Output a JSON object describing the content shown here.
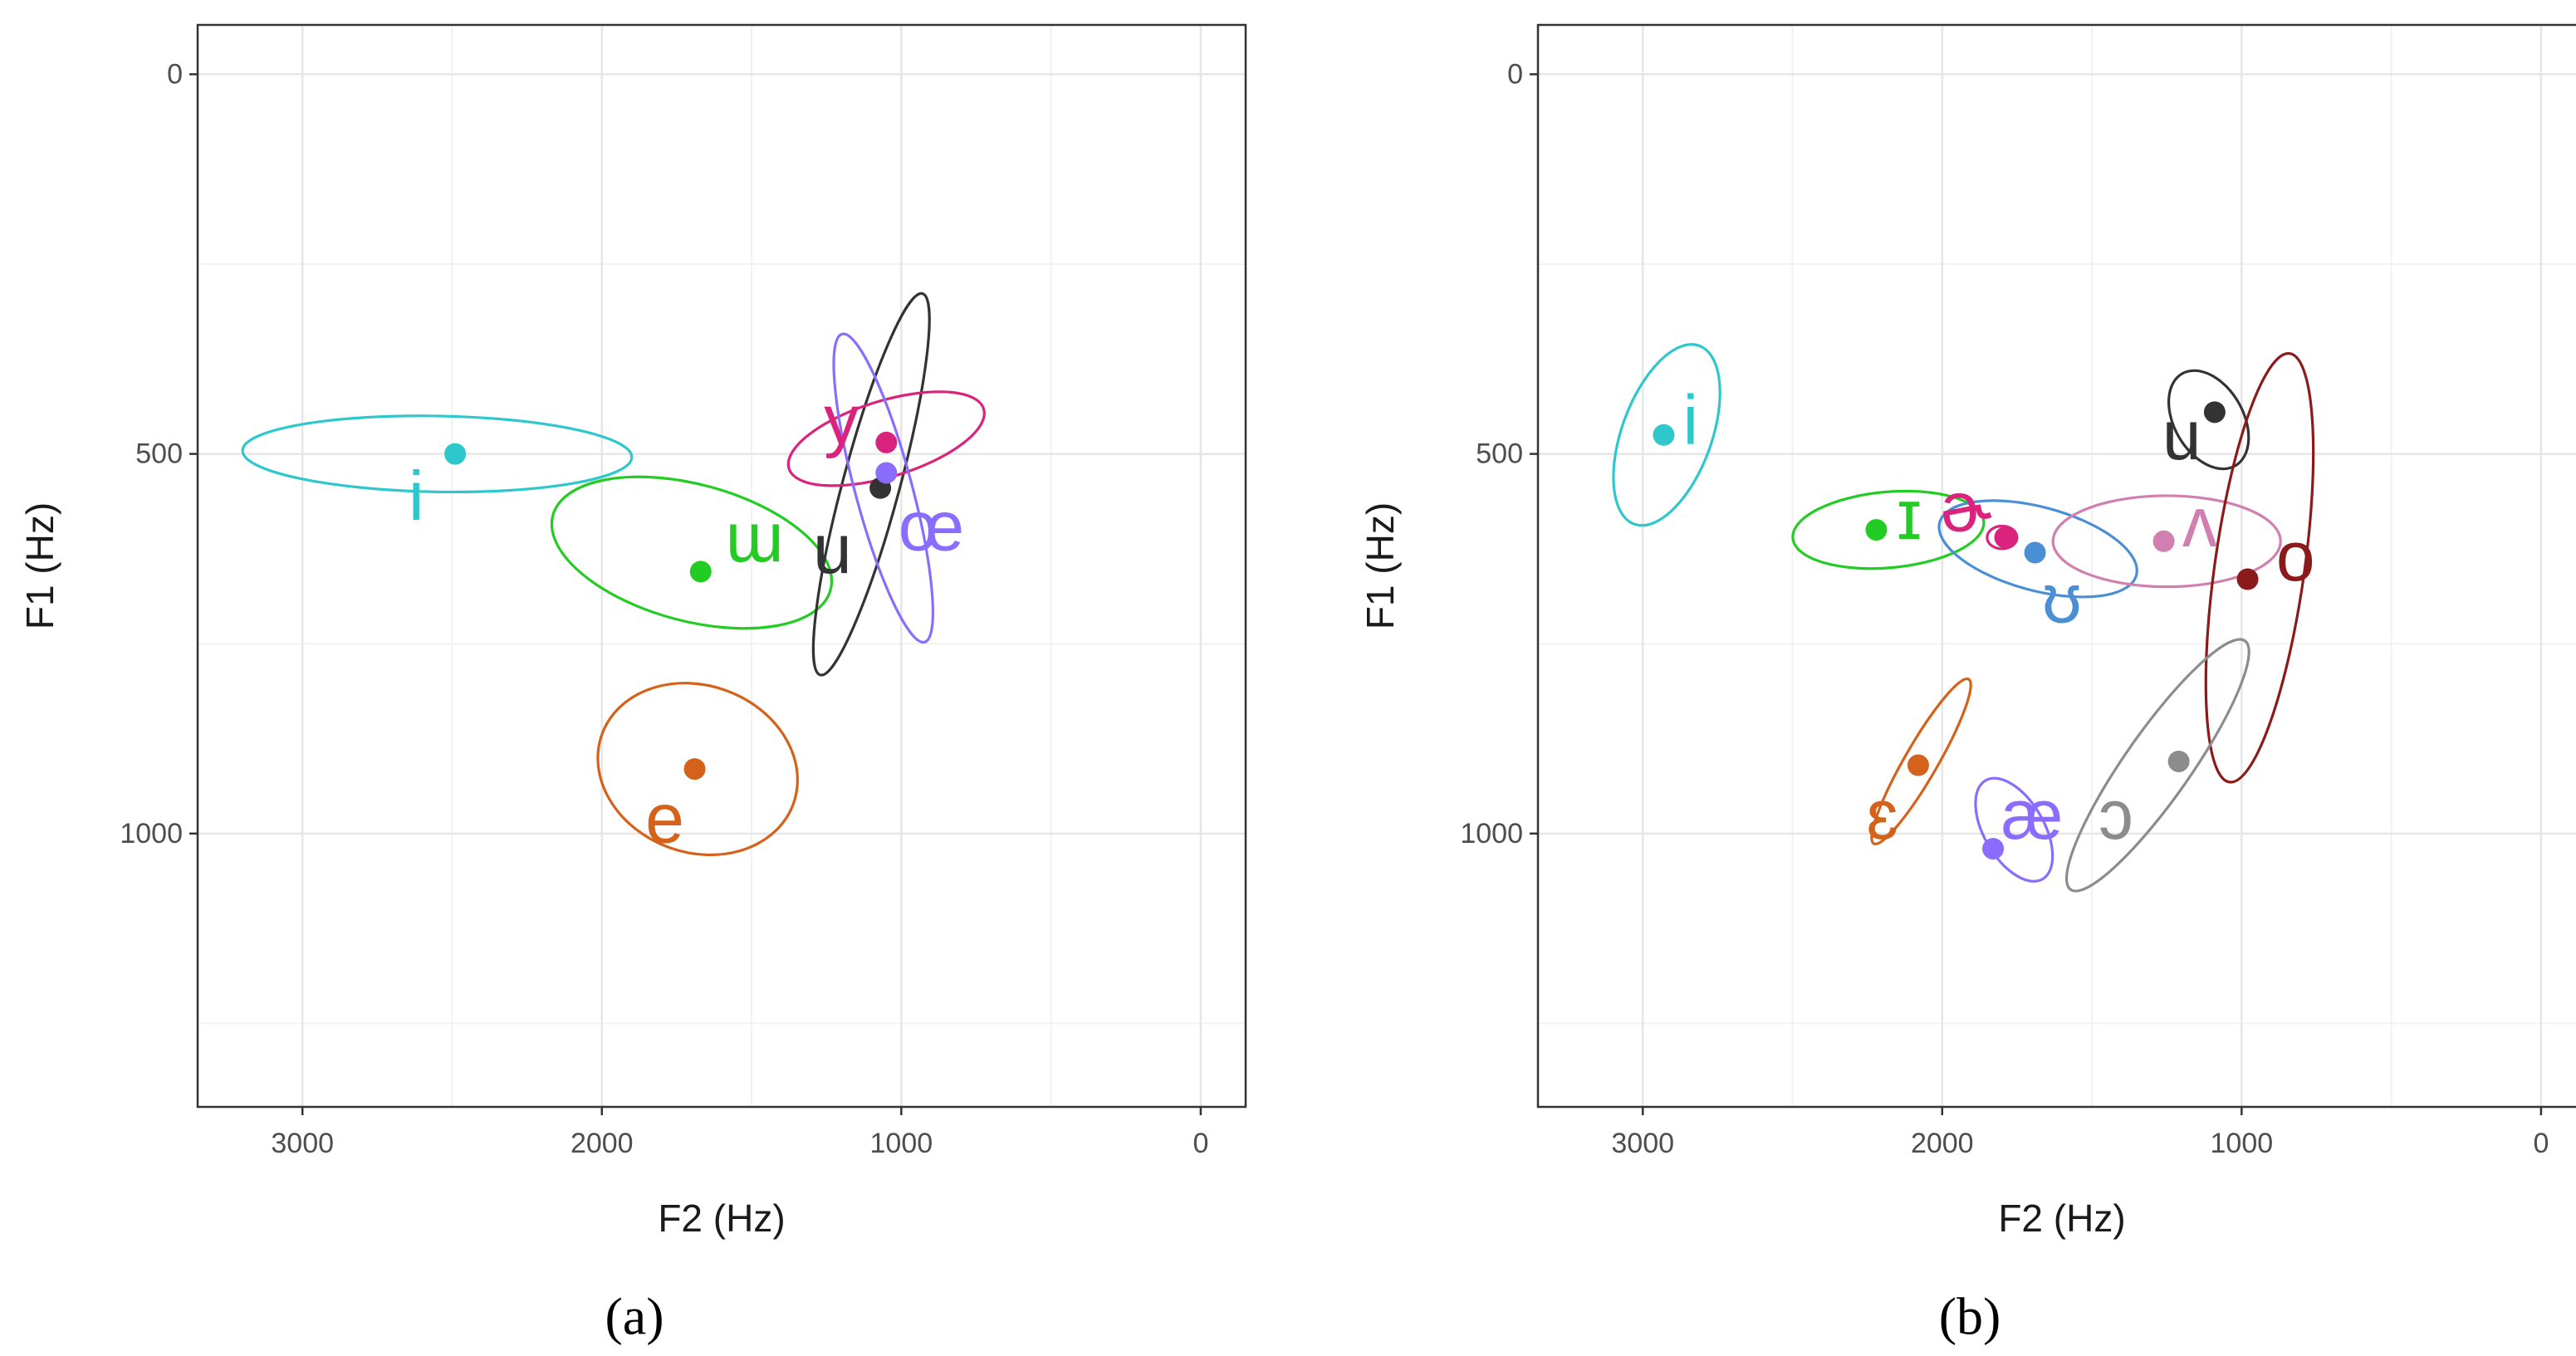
{
  "chart_data": [
    {
      "type": "scatter",
      "caption": "(a)",
      "xlabel": "F2 (Hz)",
      "ylabel": "F1 (Hz)",
      "xlim": [
        3350,
        -150
      ],
      "ylim": [
        1360,
        -65
      ],
      "x_reversed": true,
      "y_reversed": true,
      "x_ticks": [
        3000,
        2000,
        1000,
        0
      ],
      "x_tick_labels": [
        "3000",
        "2000",
        "1000",
        "0"
      ],
      "y_ticks": [
        0,
        500,
        1000
      ],
      "y_tick_labels": [
        "0",
        "500",
        "1000"
      ],
      "grid": true,
      "series": [
        {
          "name": "i",
          "color": "#2ec8cc",
          "f2": 2490,
          "f1": 500,
          "label_f2": 2620,
          "label_f1": 555,
          "ellipse": {
            "cf2": 2550,
            "cf1": 500,
            "rf2": 650,
            "rf1": 50,
            "angle": 1
          }
        },
        {
          "name": "ɯ",
          "color": "#22cc22",
          "f2": 1670,
          "f1": 655,
          "label_f2": 1490,
          "label_f1": 610,
          "ellipse": {
            "cf2": 1700,
            "cf1": 630,
            "rf2": 480,
            "rf1": 90,
            "angle": 15
          }
        },
        {
          "name": "u",
          "color": "#333333",
          "f2": 1070,
          "f1": 545,
          "label_f2": 1230,
          "label_f1": 625,
          "ellipse": {
            "cf2": 1100,
            "cf1": 540,
            "rf2": 95,
            "rf1": 260,
            "angle": 15
          }
        },
        {
          "name": "y",
          "color": "#d9237c",
          "f2": 1050,
          "f1": 485,
          "label_f2": 1200,
          "label_f1": 455,
          "ellipse": {
            "cf2": 1050,
            "cf1": 480,
            "rf2": 340,
            "rf1": 50,
            "angle": -17
          }
        },
        {
          "name": "œ",
          "color": "#8a6cff",
          "f2": 1050,
          "f1": 525,
          "label_f2": 900,
          "label_f1": 595,
          "ellipse": {
            "cf2": 1060,
            "cf1": 545,
            "rf2": 95,
            "rf1": 210,
            "angle": -15
          }
        },
        {
          "name": "e",
          "color": "#d4621a",
          "f2": 1690,
          "f1": 915,
          "label_f2": 1790,
          "label_f1": 980,
          "ellipse": {
            "cf2": 1680,
            "cf1": 915,
            "rf2": 340,
            "rf1": 110,
            "angle": 20
          }
        }
      ]
    },
    {
      "type": "scatter",
      "caption": "(b)",
      "xlabel": "F2 (Hz)",
      "ylabel": "F1 (Hz)",
      "xlim": [
        3350,
        -150
      ],
      "ylim": [
        1360,
        -65
      ],
      "x_reversed": true,
      "y_reversed": true,
      "x_ticks": [
        3000,
        2000,
        1000,
        0
      ],
      "x_tick_labels": [
        "3000",
        "2000",
        "1000",
        "0"
      ],
      "y_ticks": [
        0,
        500,
        1000
      ],
      "y_tick_labels": [
        "0",
        "500",
        "1000"
      ],
      "grid": true,
      "series": [
        {
          "name": "i",
          "color": "#2ec8cc",
          "f2": 2930,
          "f1": 475,
          "label_f2": 2840,
          "label_f1": 455,
          "ellipse": {
            "cf2": 2920,
            "cf1": 475,
            "rf2": 150,
            "rf1": 125,
            "angle": 20
          }
        },
        {
          "name": "ɪ",
          "color": "#22cc22",
          "f2": 2220,
          "f1": 600,
          "label_f2": 2110,
          "label_f1": 580,
          "ellipse": {
            "cf2": 2180,
            "cf1": 600,
            "rf2": 320,
            "rf1": 50,
            "angle": -5
          }
        },
        {
          "name": "ɚ",
          "color": "#d9237c",
          "f2": 1790,
          "f1": 610,
          "label_f2": 1920,
          "label_f1": 570,
          "ellipse": {
            "cf2": 1800,
            "cf1": 610,
            "rf2": 50,
            "rf1": 15,
            "angle": 0
          }
        },
        {
          "name": "ʊ",
          "color": "#4a8fd4",
          "f2": 1690,
          "f1": 630,
          "label_f2": 1600,
          "label_f1": 690,
          "ellipse": {
            "cf2": 1680,
            "cf1": 625,
            "rf2": 340,
            "rf1": 55,
            "angle": 15
          }
        },
        {
          "name": "ʌ",
          "color": "#d17fb0",
          "f2": 1260,
          "f1": 615,
          "label_f2": 1140,
          "label_f1": 590,
          "ellipse": {
            "cf2": 1250,
            "cf1": 615,
            "rf2": 380,
            "rf1": 60,
            "angle": 0
          }
        },
        {
          "name": "u",
          "color": "#333333",
          "f2": 1090,
          "f1": 445,
          "label_f2": 1200,
          "label_f1": 475,
          "ellipse": {
            "cf2": 1110,
            "cf1": 455,
            "rf2": 115,
            "rf1": 70,
            "angle": -30
          }
        },
        {
          "name": "o",
          "color": "#8b1a1a",
          "f2": 980,
          "f1": 665,
          "label_f2": 820,
          "label_f1": 635,
          "ellipse": {
            "cf2": 940,
            "cf1": 650,
            "rf2": 150,
            "rf1": 285,
            "angle": 8
          }
        },
        {
          "name": "ɛ",
          "color": "#d4621a",
          "f2": 2080,
          "f1": 910,
          "label_f2": 2200,
          "label_f1": 975,
          "ellipse": {
            "cf2": 2070,
            "cf1": 905,
            "rf2": 55,
            "rf1": 125,
            "angle": 30
          }
        },
        {
          "name": "æ",
          "color": "#8a6cff",
          "f2": 1830,
          "f1": 1020,
          "label_f2": 1700,
          "label_f1": 975,
          "ellipse": {
            "cf2": 1760,
            "cf1": 995,
            "rf2": 100,
            "rf1": 75,
            "angle": -30
          }
        },
        {
          "name": "ɔ",
          "color": "#8c8c8c",
          "f2": 1210,
          "f1": 905,
          "label_f2": 1420,
          "label_f1": 975,
          "ellipse": {
            "cf2": 1280,
            "cf1": 910,
            "rf2": 110,
            "rf1": 200,
            "angle": 35
          }
        }
      ]
    }
  ]
}
